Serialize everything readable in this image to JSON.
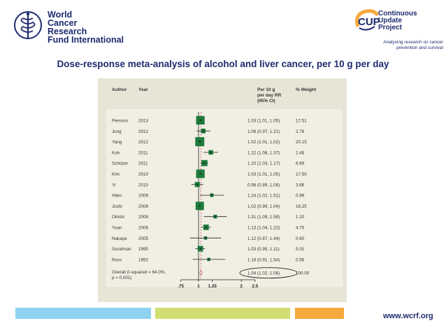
{
  "logo_left": {
    "lines": [
      "World",
      "Cancer",
      "Research",
      "Fund International"
    ]
  },
  "logo_right": {
    "brand": "CUP",
    "lines": [
      "Continuous",
      "Update",
      "Project"
    ],
    "tagline": [
      "Analysing research on cancer",
      "prevention and survival"
    ]
  },
  "title": "Dose-response meta-analysis of alcohol and liver cancer, per 10 g per day",
  "chart_data": {
    "type": "forest",
    "headers": {
      "author": "Author",
      "year": "Year",
      "rr": [
        "Per 10 g",
        "per day RR",
        "(95% CI)"
      ],
      "weight": "% Weight"
    },
    "studies": [
      {
        "author": "Persson",
        "year": "2013",
        "rr": 1.03,
        "lo": 1.01,
        "hi": 1.05,
        "ci_text": "1.03 (1.01, 1.05)",
        "weight": "17.51"
      },
      {
        "author": "Jung",
        "year": "2012",
        "rr": 1.08,
        "lo": 0.97,
        "hi": 1.21,
        "ci_text": "1.08 (0.97, 1.21)",
        "weight": "2.76"
      },
      {
        "author": "Yang",
        "year": "2012",
        "rr": 1.02,
        "lo": 1.01,
        "hi": 1.02,
        "ci_text": "1.02 (1.01, 1.02)",
        "weight": "20.15"
      },
      {
        "author": "Koh",
        "year": "2011",
        "rr": 1.22,
        "lo": 1.08,
        "hi": 1.37,
        "ci_text": "1.22 (1.08, 1.37)",
        "weight": "2.48"
      },
      {
        "author": "Schütze",
        "year": "2011",
        "rr": 1.1,
        "lo": 1.03,
        "hi": 1.17,
        "ci_text": "1.10 (1.03, 1.17)",
        "weight": "6.69"
      },
      {
        "author": "Kim",
        "year": "2010",
        "rr": 1.03,
        "lo": 1.01,
        "hi": 1.05,
        "ci_text": "1.03 (1.01, 1.05)",
        "weight": "17.50"
      },
      {
        "author": "Yi",
        "year": "2010",
        "rr": 0.98,
        "lo": 0.89,
        "hi": 1.08,
        "ci_text": "0.98 (0.89, 1.08)",
        "weight": "3.66"
      },
      {
        "author": "Allen",
        "year": "2009",
        "rr": 1.24,
        "lo": 1.02,
        "hi": 1.51,
        "ci_text": "1.24 (1.02, 1.51)",
        "weight": "0.99"
      },
      {
        "author": "Joshi",
        "year": "2008",
        "rr": 1.02,
        "lo": 0.99,
        "hi": 1.04,
        "ci_text": "1.02 (0.99, 1.04)",
        "weight": "16.25"
      },
      {
        "author": "Ohishi",
        "year": "2008",
        "rr": 1.31,
        "lo": 1.09,
        "hi": 1.58,
        "ci_text": "1.31 (1.09, 1.58)",
        "weight": "1.10"
      },
      {
        "author": "Yuan",
        "year": "2006",
        "rr": 1.13,
        "lo": 1.04,
        "hi": 1.22,
        "ci_text": "1.13 (1.04, 1.22)",
        "weight": "4.75"
      },
      {
        "author": "Nakaya",
        "year": "2005",
        "rr": 1.12,
        "lo": 0.87,
        "hi": 1.44,
        "ci_text": "1.12 (0.87, 1.44)",
        "weight": "0.60"
      },
      {
        "author": "Goodman",
        "year": "1995",
        "rr": 1.03,
        "lo": 0.95,
        "hi": 1.11,
        "ci_text": "1.03 (0.95, 1.11)",
        "weight": "5.01"
      },
      {
        "author": "Ross",
        "year": "1992",
        "rr": 1.18,
        "lo": 0.91,
        "hi": 1.54,
        "ci_text": "1.18 (0.91, 1.54)",
        "weight": "0.56"
      }
    ],
    "overall": {
      "label": [
        "Overall (I-squared = 64.0%,",
        "p = 0.001)"
      ],
      "rr": 1.04,
      "lo": 1.02,
      "hi": 1.06,
      "ci_text": "1.04 (1.02, 1.06)",
      "weight": "100.00"
    },
    "x_scale": "log",
    "xlim": [
      0.65,
      2.9
    ],
    "ticks": [
      {
        "value": 0.75,
        "label": ".75"
      },
      {
        "value": 1,
        "label": "1"
      },
      {
        "value": 1.25,
        "label": "1.25"
      },
      {
        "value": 2,
        "label": "2"
      },
      {
        "value": 2.5,
        "label": "2.5"
      }
    ],
    "null_line": 1
  },
  "footer": {
    "url": "www.wcrf.org",
    "bar_colors": [
      "#8ed3f0",
      "#d2de72",
      "#f6a93d"
    ]
  },
  "colors": {
    "navy": "#1e2a6e",
    "marker": "#1c7a3b",
    "panel": "#e8e5d7",
    "inner": "#f1efe3",
    "cup_orange": "#f6a93d"
  }
}
